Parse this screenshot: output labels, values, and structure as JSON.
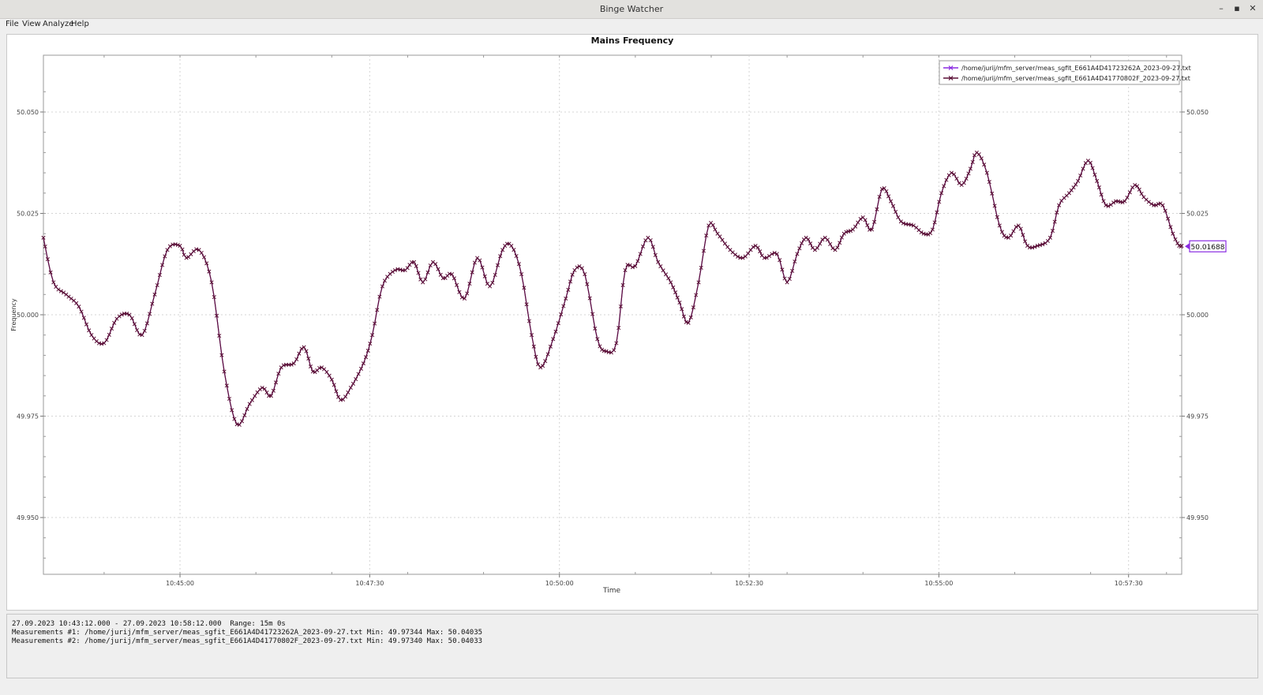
{
  "window": {
    "title": "Binge Watcher",
    "controls": [
      "–",
      "▪",
      "✕"
    ]
  },
  "menu": [
    "File",
    "View",
    "Analyze",
    "Help"
  ],
  "colors": {
    "series1": "#8a2be2",
    "series2": "#5a0e36",
    "marker_box": "#8a2be2"
  },
  "chart_data": {
    "type": "line",
    "title": "Mains Frequency",
    "xlabel": "Time",
    "ylabel": "Frequency",
    "ylim": [
      49.936,
      50.064
    ],
    "xlim": [
      "10:43:12",
      "10:58:12"
    ],
    "grid": true,
    "legend_position": "top-right",
    "y_ticks": [
      "49.950",
      "49.975",
      "50.000",
      "50.025",
      "50.050"
    ],
    "x_ticks": [
      "10:45:00",
      "10:47:30",
      "10:50:00",
      "10:52:30",
      "10:55:00",
      "10:57:30"
    ],
    "series": [
      {
        "name": "/home/jurij/mfm_server/meas_sgfit_E661A4D41723262A_2023-09-27.txt",
        "points": [
          [
            "10:43:12",
            50.019
          ],
          [
            "10:43:20",
            50.008
          ],
          [
            "10:43:30",
            50.005
          ],
          [
            "10:43:40",
            50.002
          ],
          [
            "10:43:50",
            49.995
          ],
          [
            "10:44:00",
            49.993
          ],
          [
            "10:44:10",
            49.999
          ],
          [
            "10:44:20",
            50.0
          ],
          [
            "10:44:30",
            49.995
          ],
          [
            "10:44:40",
            50.005
          ],
          [
            "10:44:50",
            50.016
          ],
          [
            "10:45:00",
            50.017
          ],
          [
            "10:45:05",
            50.014
          ],
          [
            "10:45:15",
            50.016
          ],
          [
            "10:45:25",
            50.008
          ],
          [
            "10:45:35",
            49.986
          ],
          [
            "10:45:45",
            49.973
          ],
          [
            "10:45:55",
            49.978
          ],
          [
            "10:46:05",
            49.982
          ],
          [
            "10:46:12",
            49.98
          ],
          [
            "10:46:20",
            49.987
          ],
          [
            "10:46:30",
            49.988
          ],
          [
            "10:46:38",
            49.992
          ],
          [
            "10:46:45",
            49.986
          ],
          [
            "10:46:52",
            49.987
          ],
          [
            "10:47:00",
            49.984
          ],
          [
            "10:47:07",
            49.979
          ],
          [
            "10:47:15",
            49.982
          ],
          [
            "10:47:25",
            49.988
          ],
          [
            "10:47:32",
            49.995
          ],
          [
            "10:47:40",
            50.007
          ],
          [
            "10:47:50",
            50.011
          ],
          [
            "10:47:58",
            50.011
          ],
          [
            "10:48:05",
            50.013
          ],
          [
            "10:48:12",
            50.008
          ],
          [
            "10:48:20",
            50.013
          ],
          [
            "10:48:28",
            50.009
          ],
          [
            "10:48:35",
            50.01
          ],
          [
            "10:48:45",
            50.004
          ],
          [
            "10:48:55",
            50.014
          ],
          [
            "10:49:05",
            50.007
          ],
          [
            "10:49:15",
            50.016
          ],
          [
            "10:49:22",
            50.017
          ],
          [
            "10:49:30",
            50.01
          ],
          [
            "10:49:38",
            49.995
          ],
          [
            "10:49:45",
            49.987
          ],
          [
            "10:49:55",
            49.994
          ],
          [
            "10:50:05",
            50.004
          ],
          [
            "10:50:12",
            50.011
          ],
          [
            "10:50:20",
            50.01
          ],
          [
            "10:50:30",
            49.994
          ],
          [
            "10:50:37",
            49.991
          ],
          [
            "10:50:45",
            49.993
          ],
          [
            "10:50:52",
            50.011
          ],
          [
            "10:51:00",
            50.012
          ],
          [
            "10:51:10",
            50.019
          ],
          [
            "10:51:18",
            50.013
          ],
          [
            "10:51:28",
            50.008
          ],
          [
            "10:51:35",
            50.003
          ],
          [
            "10:51:42",
            49.998
          ],
          [
            "10:51:50",
            50.008
          ],
          [
            "10:51:58",
            50.022
          ],
          [
            "10:52:05",
            50.02
          ],
          [
            "10:52:15",
            50.016
          ],
          [
            "10:52:25",
            50.014
          ],
          [
            "10:52:35",
            50.017
          ],
          [
            "10:52:42",
            50.014
          ],
          [
            "10:52:52",
            50.015
          ],
          [
            "10:53:00",
            50.008
          ],
          [
            "10:53:08",
            50.015
          ],
          [
            "10:53:15",
            50.019
          ],
          [
            "10:53:22",
            50.016
          ],
          [
            "10:53:30",
            50.019
          ],
          [
            "10:53:38",
            50.016
          ],
          [
            "10:53:45",
            50.02
          ],
          [
            "10:53:52",
            50.021
          ],
          [
            "10:54:00",
            50.024
          ],
          [
            "10:54:07",
            50.021
          ],
          [
            "10:54:15",
            50.031
          ],
          [
            "10:54:22",
            50.028
          ],
          [
            "10:54:30",
            50.023
          ],
          [
            "10:54:40",
            50.022
          ],
          [
            "10:54:48",
            50.02
          ],
          [
            "10:54:55",
            50.021
          ],
          [
            "10:55:02",
            50.03
          ],
          [
            "10:55:10",
            50.035
          ],
          [
            "10:55:18",
            50.032
          ],
          [
            "10:55:25",
            50.036
          ],
          [
            "10:55:30",
            50.04
          ],
          [
            "10:55:38",
            50.035
          ],
          [
            "10:55:48",
            50.022
          ],
          [
            "10:55:55",
            50.019
          ],
          [
            "10:56:03",
            50.022
          ],
          [
            "10:56:10",
            50.017
          ],
          [
            "10:56:18",
            50.017
          ],
          [
            "10:56:28",
            50.019
          ],
          [
            "10:56:35",
            50.027
          ],
          [
            "10:56:43",
            50.03
          ],
          [
            "10:56:50",
            50.033
          ],
          [
            "10:56:58",
            50.038
          ],
          [
            "10:57:05",
            50.033
          ],
          [
            "10:57:12",
            50.027
          ],
          [
            "10:57:20",
            50.028
          ],
          [
            "10:57:27",
            50.028
          ],
          [
            "10:57:35",
            50.032
          ],
          [
            "10:57:42",
            50.029
          ],
          [
            "10:57:50",
            50.027
          ],
          [
            "10:57:57",
            50.027
          ],
          [
            "10:58:05",
            50.02
          ],
          [
            "10:58:10",
            50.017
          ],
          [
            "10:58:12",
            50.017
          ]
        ]
      },
      {
        "name": "/home/jurij/mfm_server/meas_sgfit_E661A4D41770802F_2023-09-27.txt",
        "same_as_series_1": true
      }
    ],
    "cursor_value_label": "50.01688"
  },
  "info": {
    "lines": [
      "27.09.2023 10:43:12.000 - 27.09.2023 10:58:12.000  Range: 15m 0s",
      "Measurements #1: /home/jurij/mfm_server/meas_sgfit_E661A4D41723262A_2023-09-27.txt Min: 49.97344 Max: 50.04035",
      "Measurements #2: /home/jurij/mfm_server/meas_sgfit_E661A4D41770802F_2023-09-27.txt Min: 49.97340 Max: 50.04033"
    ]
  }
}
